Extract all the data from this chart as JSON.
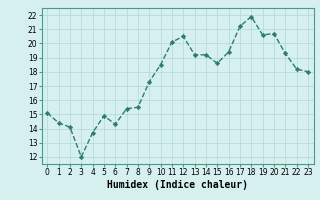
{
  "x": [
    0,
    1,
    2,
    3,
    4,
    5,
    6,
    7,
    8,
    9,
    10,
    11,
    12,
    13,
    14,
    15,
    16,
    17,
    18,
    19,
    20,
    21,
    22,
    23
  ],
  "y": [
    15.1,
    14.4,
    14.1,
    12.0,
    13.7,
    14.9,
    14.3,
    15.4,
    15.5,
    17.3,
    18.5,
    20.1,
    20.5,
    19.2,
    19.2,
    18.6,
    19.4,
    21.2,
    21.9,
    20.6,
    20.7,
    19.3,
    18.2,
    18.0
  ],
  "line_color": "#2e7d6e",
  "marker": "D",
  "marker_size": 2.2,
  "line_width": 1.0,
  "bg_color": "#d6f0f0",
  "grid_color": "#b0d8d4",
  "xlabel": "Humidex (Indice chaleur)",
  "xlabel_fontsize": 7,
  "ylabel_ticks": [
    12,
    13,
    14,
    15,
    16,
    17,
    18,
    19,
    20,
    21,
    22
  ],
  "xtick_labels": [
    "0",
    "1",
    "2",
    "3",
    "4",
    "5",
    "6",
    "7",
    "8",
    "9",
    "10",
    "11",
    "12",
    "13",
    "14",
    "15",
    "16",
    "17",
    "18",
    "19",
    "20",
    "21",
    "22",
    "23"
  ],
  "ylim": [
    11.5,
    22.5
  ],
  "xlim": [
    -0.5,
    23.5
  ],
  "tick_fontsize": 5.5,
  "spine_color": "#4a9a8a"
}
